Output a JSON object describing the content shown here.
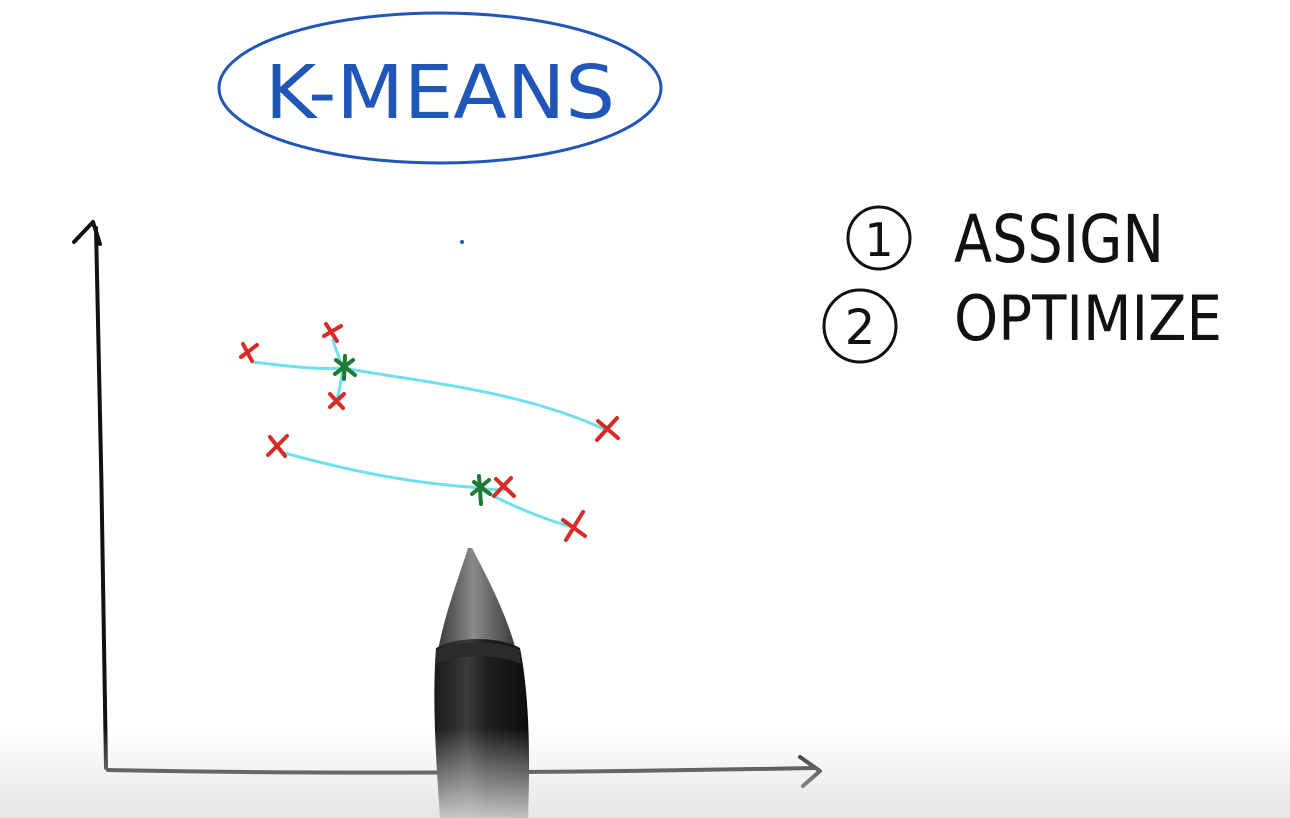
{
  "title": "K-MEANS",
  "steps": [
    {
      "number": "1",
      "label": "ASSIGN"
    },
    {
      "number": "2",
      "label": "OPTIMIZE"
    }
  ],
  "colors": {
    "title_ink": "#1f56b8",
    "axis_ink": "#111111",
    "point_ink": "#d62b27",
    "centroid_ink": "#1d7a33",
    "link_ink": "#6fe0ee",
    "steps_ink": "#111111"
  },
  "icons": {
    "data_point": "red-x-mark-icon",
    "centroid": "green-star-icon",
    "pen": "stylus-pen-icon"
  },
  "clusters": [
    {
      "points": 4,
      "has_centroid": true
    },
    {
      "points": 3,
      "has_centroid": true
    }
  ]
}
